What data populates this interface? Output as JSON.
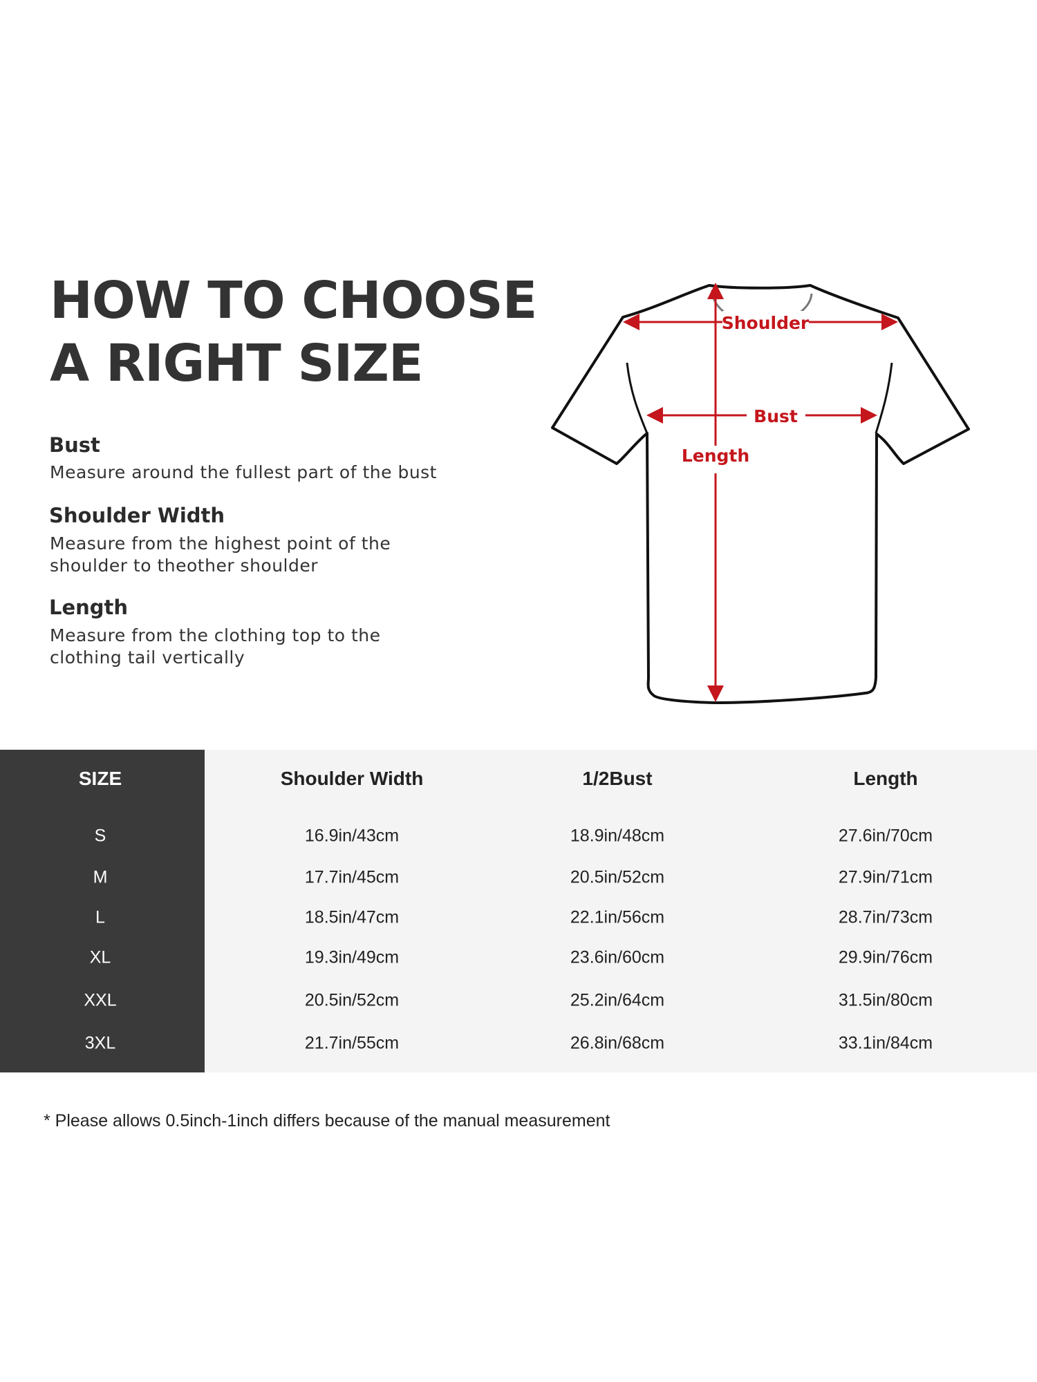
{
  "title": {
    "line1": "HOW TO CHOOSE",
    "line2": "A RIGHT SIZE"
  },
  "guide": [
    {
      "heading": "Bust",
      "lines": [
        "Measure around the fullest part of the bust"
      ]
    },
    {
      "heading": "Shoulder Width",
      "lines": [
        "Measure from the highest point of the",
        "shoulder to theother shoulder"
      ]
    },
    {
      "heading": "Length",
      "lines": [
        "Measure from the clothing top to the",
        "clothing tail vertically"
      ]
    }
  ],
  "diagram": {
    "shoulder_label": "Shoulder",
    "bust_label": "Bust",
    "length_label": "Length",
    "arrow_color": "#c4161c"
  },
  "table": {
    "headers": [
      "SIZE",
      "Shoulder Width",
      "1/2Bust",
      "Length"
    ],
    "rows": [
      [
        "S",
        "16.9in/43cm",
        "18.9in/48cm",
        "27.6in/70cm"
      ],
      [
        "M",
        "17.7in/45cm",
        "20.5in/52cm",
        "27.9in/71cm"
      ],
      [
        "L",
        "18.5in/47cm",
        "22.1in/56cm",
        "28.7in/73cm"
      ],
      [
        "XL",
        "19.3in/49cm",
        "23.6in/60cm",
        "29.9in/76cm"
      ],
      [
        "XXL",
        "20.5in/52cm",
        "25.2in/64cm",
        "31.5in/80cm"
      ],
      [
        "3XL",
        "21.7in/55cm",
        "26.8in/68cm",
        "33.1in/84cm"
      ]
    ]
  },
  "footnote": "* Please allows 0.5inch-1inch differs because of the  manual measurement"
}
